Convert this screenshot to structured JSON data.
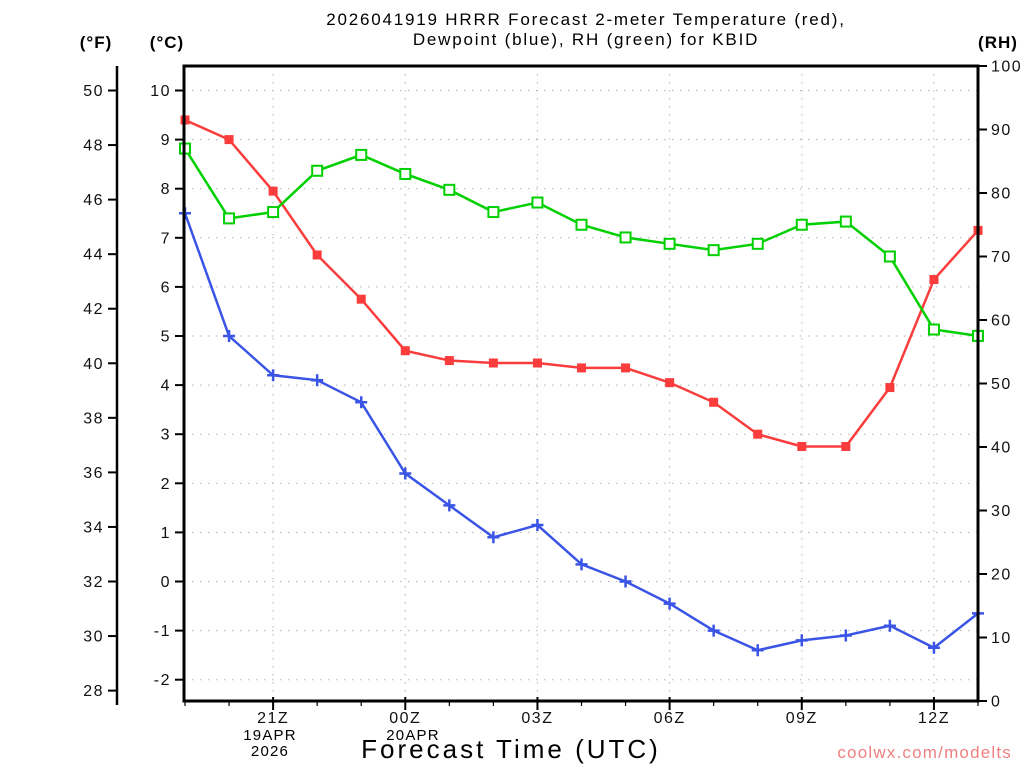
{
  "title": {
    "line1": "2026041919 HRRR Forecast 2-meter Temperature (red),",
    "line2": "Dewpoint (blue), RH (green) for KBID"
  },
  "axis_headers": {
    "fahrenheit": "(°F)",
    "celsius": "(°C)",
    "rh": "(RH)"
  },
  "x_axis": {
    "title": "Forecast Time (UTC)",
    "date_label_line1": "19APR",
    "date_label_line2": "2026",
    "date_label_2": "20APR"
  },
  "watermark": {
    "text": "coolwx.com/modelts",
    "color": "#f08080"
  },
  "chart_data": {
    "type": "line",
    "station": "KBID",
    "model_run": "2026041919",
    "x_hours": [
      "19Z",
      "20Z",
      "21Z",
      "22Z",
      "23Z",
      "00Z",
      "01Z",
      "02Z",
      "03Z",
      "04Z",
      "05Z",
      "06Z",
      "07Z",
      "08Z",
      "09Z",
      "10Z",
      "11Z",
      "12Z",
      "13Z"
    ],
    "x_tick_labels": [
      "21Z",
      "00Z",
      "03Z",
      "06Z",
      "09Z",
      "12Z"
    ],
    "x_tick_hour_indices": [
      2,
      5,
      8,
      11,
      14,
      17
    ],
    "celsius_ticks": [
      10,
      9,
      8,
      7,
      6,
      5,
      4,
      3,
      2,
      1,
      0,
      -1,
      -2
    ],
    "fahrenheit_ticks": [
      50,
      48,
      46,
      44,
      42,
      40,
      38,
      36,
      34,
      32,
      30,
      28
    ],
    "rh_ticks": [
      100,
      90,
      80,
      70,
      60,
      50,
      40,
      30,
      20,
      10,
      0
    ],
    "ylim_celsius": [
      -2.45,
      10.5
    ],
    "ylim_rh": [
      0,
      100
    ],
    "grid": true,
    "legend_position": "none",
    "series": [
      {
        "name": "2-meter Temperature",
        "axis": "celsius",
        "unit": "°C",
        "color": "#fa3c3c",
        "marker": "filled-square",
        "values": [
          9.4,
          9.0,
          7.95,
          6.65,
          5.75,
          4.7,
          4.5,
          4.45,
          4.45,
          4.35,
          4.35,
          4.05,
          3.65,
          3.0,
          2.75,
          2.75,
          3.95,
          6.15,
          7.15
        ]
      },
      {
        "name": "Dewpoint",
        "axis": "celsius",
        "unit": "°C",
        "color": "#3a55e6",
        "marker": "plus",
        "values": [
          7.5,
          5.0,
          4.2,
          4.1,
          3.65,
          2.2,
          1.55,
          0.9,
          1.15,
          0.35,
          0.0,
          -0.45,
          -1.0,
          -1.4,
          -1.2,
          -1.1,
          -0.9,
          -1.35,
          -0.65
        ]
      },
      {
        "name": "Relative Humidity",
        "axis": "rh",
        "unit": "%",
        "color": "#00d000",
        "marker": "open-square",
        "values": [
          87,
          76,
          77,
          83.5,
          86,
          83,
          80.5,
          77,
          78.5,
          75,
          73,
          72,
          71,
          72,
          75,
          75.5,
          70,
          58.5,
          57.5
        ]
      }
    ]
  }
}
